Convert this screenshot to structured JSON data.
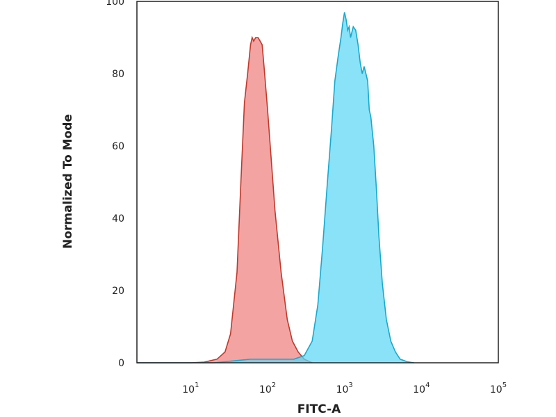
{
  "chart_data": {
    "type": "area",
    "title": "",
    "xlabel": "FITC-A",
    "ylabel": "Normalized To Mode",
    "xscale": "log",
    "xlim": [
      2,
      100000
    ],
    "ylim": [
      0,
      100
    ],
    "x_tick_labels": [
      {
        "value": 10,
        "base": "10",
        "exp": "1"
      },
      {
        "value": 100,
        "base": "10",
        "exp": "2"
      },
      {
        "value": 1000,
        "base": "10",
        "exp": "3"
      },
      {
        "value": 10000,
        "base": "10",
        "exp": "4"
      },
      {
        "value": 100000,
        "base": "10",
        "exp": "5"
      }
    ],
    "y_ticks": [
      0,
      20,
      40,
      60,
      80,
      100
    ],
    "grid": false,
    "legend": "none",
    "series": [
      {
        "color": "#f08080",
        "stroke": "#c0392b",
        "x": [
          2,
          10,
          15,
          22,
          28,
          33,
          40,
          45,
          50,
          55,
          60,
          63,
          66,
          70,
          75,
          80,
          85,
          90,
          100,
          110,
          125,
          150,
          180,
          210,
          250,
          300,
          380
        ],
        "y": [
          0,
          0,
          0.2,
          1,
          3,
          8,
          25,
          50,
          72,
          80,
          88,
          90,
          89,
          90,
          90,
          89,
          88,
          82,
          70,
          58,
          42,
          25,
          12,
          6,
          3,
          1,
          0
        ]
      },
      {
        "color": "#5bd7f5",
        "stroke": "#17a9cc",
        "x": [
          2,
          20,
          60,
          150,
          220,
          300,
          380,
          450,
          520,
          600,
          680,
          750,
          830,
          900,
          950,
          1000,
          1050,
          1100,
          1150,
          1200,
          1300,
          1400,
          1500,
          1600,
          1700,
          1800,
          1900,
          2000,
          2100,
          2200,
          2400,
          2600,
          2800,
          3100,
          3500,
          4000,
          4600,
          5300,
          6500,
          8000
        ],
        "y": [
          0,
          0,
          1,
          1,
          1,
          2,
          6,
          16,
          32,
          50,
          65,
          78,
          85,
          90,
          94,
          97,
          95,
          92,
          93,
          90,
          93,
          92,
          88,
          83,
          80,
          82,
          80,
          78,
          70,
          68,
          60,
          48,
          35,
          22,
          12,
          6,
          3,
          1,
          0.3,
          0
        ]
      }
    ]
  }
}
